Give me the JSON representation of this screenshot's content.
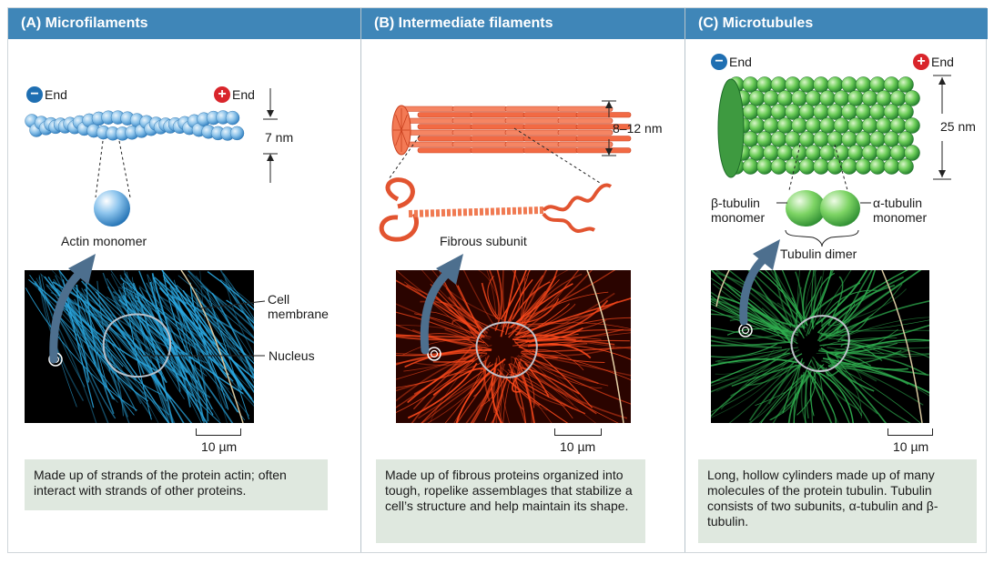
{
  "panels": [
    {
      "header": "(A)  Microfilaments",
      "minus_end": "End",
      "plus_end": "End",
      "dimension": "7 nm",
      "monomer_label": "Actin monomer",
      "cell_membrane_label": "Cell\nmembrane",
      "nucleus_label": "Nucleus",
      "scale": "10 µm",
      "caption": "Made up of strands of the protein actin; often interact with strands of other proteins.",
      "micro_color": "#2aa7e0"
    },
    {
      "header": "(B)  Intermediate filaments",
      "dimension": "8–12 nm",
      "subunit_label": "Fibrous subunit",
      "scale": "10 µm",
      "caption": "Made up of fibrous proteins organized into tough, ropelike assemblages that stabilize a cell’s structure and help maintain its shape.",
      "micro_color": "#ff4a1c"
    },
    {
      "header": "(C)  Microtubules",
      "minus_end": "End",
      "plus_end": "End",
      "dimension": "25 nm",
      "beta_label": "β-tubulin\nmonomer",
      "alpha_label": "α-tubulin\nmonomer",
      "dimer_label": "Tubulin dimer",
      "scale": "10 µm",
      "caption": "Long, hollow cylinders made up of many molecules of the protein tubulin. Tubulin consists of two subunits, α-tubulin and β-tubulin.",
      "micro_color": "#2fae4f"
    }
  ],
  "icons": {
    "minus": "−",
    "plus": "+"
  }
}
